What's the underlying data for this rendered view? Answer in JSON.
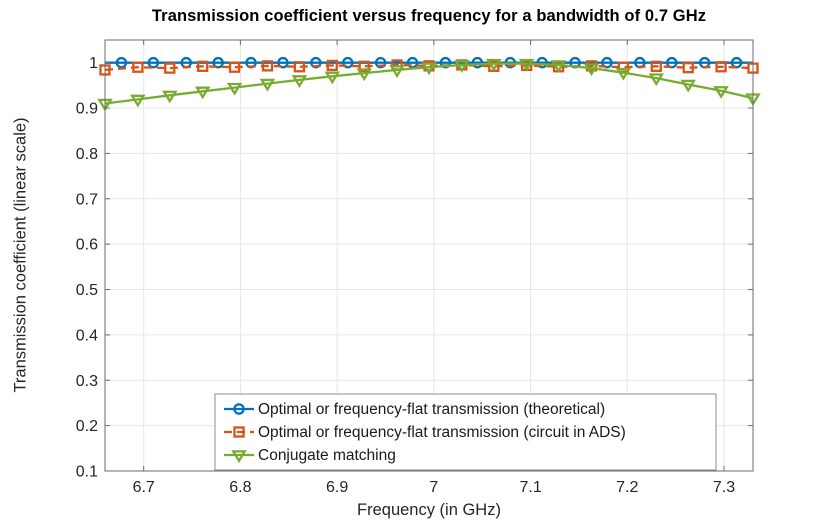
{
  "styles": {
    "background": "#ffffff",
    "grid_color": "#e6e6e6",
    "axis_color": "#6b6b6b",
    "tick_text_color": "#262626",
    "title_color": "#000000",
    "legend_border_color": "#8c8c8c",
    "legend_background": "#ffffff",
    "legend_text_color": "#1a1a1a"
  },
  "chart_data": {
    "type": "line",
    "title": "Transmission coefficient versus frequency for a bandwidth of 0.7 GHz",
    "xlabel": "Frequency (in GHz)",
    "ylabel": "Transmission coefficient (linear scale)",
    "xlim": [
      6.66,
      7.33
    ],
    "ylim": [
      0.1,
      1.05
    ],
    "xticks": [
      6.7,
      6.8,
      6.9,
      7.0,
      7.1,
      7.2,
      7.3
    ],
    "xtick_labels": [
      "6.7",
      "6.8",
      "6.9",
      "7",
      "7.1",
      "7.2",
      "7.3"
    ],
    "yticks": [
      0.1,
      0.2,
      0.3,
      0.4,
      0.5,
      0.6,
      0.7,
      0.8,
      0.9,
      1.0
    ],
    "ytick_labels": [
      "0.1",
      "0.2",
      "0.3",
      "0.4",
      "0.5",
      "0.6",
      "0.7",
      "0.8",
      "0.9",
      "1"
    ],
    "grid": true,
    "legend_position": "south",
    "series": [
      {
        "name": "Optimal or frequency-flat transmission (theoretical)",
        "color": "#0072BD",
        "marker": "circle",
        "line_style": "solid",
        "extend_line_to_xlim": true,
        "x": [
          6.677,
          6.71,
          6.744,
          6.777,
          6.811,
          6.844,
          6.878,
          6.911,
          6.945,
          6.978,
          7.012,
          7.045,
          7.079,
          7.112,
          7.146,
          7.179,
          7.213,
          7.246,
          7.28,
          7.313
        ],
        "y": [
          1,
          1,
          1,
          1,
          1,
          1,
          1,
          1,
          1,
          1,
          1,
          1,
          1,
          1,
          1,
          1,
          1,
          1,
          1,
          1
        ]
      },
      {
        "name": "Optimal or frequency-flat transmission (circuit in ADS)",
        "color": "#D95319",
        "marker": "square",
        "line_style": "dashed",
        "extend_line_to_xlim": false,
        "x": [
          6.66,
          6.694,
          6.727,
          6.761,
          6.794,
          6.828,
          6.861,
          6.895,
          6.928,
          6.962,
          6.995,
          7.029,
          7.062,
          7.096,
          7.129,
          7.163,
          7.196,
          7.23,
          7.263,
          7.297,
          7.33
        ],
        "y": [
          0.984,
          0.99,
          0.988,
          0.992,
          0.99,
          0.993,
          0.991,
          0.994,
          0.992,
          0.995,
          0.993,
          0.995,
          0.992,
          0.994,
          0.991,
          0.993,
          0.99,
          0.992,
          0.989,
          0.991,
          0.988
        ]
      },
      {
        "name": "Conjugate matching",
        "color": "#77AC30",
        "marker": "triangle-down",
        "line_style": "solid",
        "extend_line_to_xlim": false,
        "x": [
          6.66,
          6.694,
          6.727,
          6.761,
          6.794,
          6.828,
          6.861,
          6.895,
          6.928,
          6.962,
          6.995,
          7.029,
          7.062,
          7.096,
          7.129,
          7.163,
          7.196,
          7.23,
          7.263,
          7.297,
          7.33
        ],
        "y": [
          0.91,
          0.919,
          0.928,
          0.937,
          0.945,
          0.954,
          0.962,
          0.97,
          0.977,
          0.984,
          0.99,
          0.995,
          0.998,
          0.998,
          0.995,
          0.988,
          0.978,
          0.966,
          0.952,
          0.938,
          0.922
        ]
      }
    ]
  }
}
